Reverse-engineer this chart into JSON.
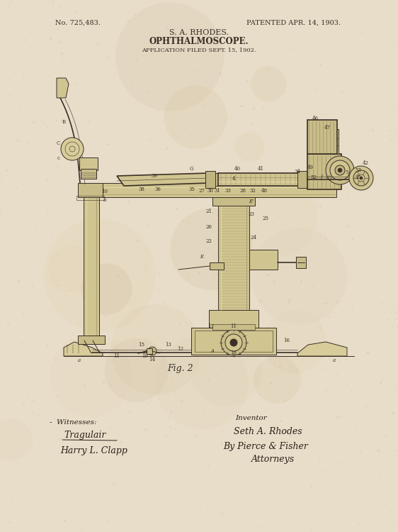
{
  "bg_color": "#e8ddc8",
  "ink_color": "#3a3028",
  "sig_color": "#2a201a",
  "title_line1": "S. A. RHODES.",
  "title_line2": "OPHTHALMOSCOPE.",
  "title_line3": "APPLICATION FILED SEPT. 15, 1902.",
  "patent_no": "No. 725,483.",
  "patent_date": "PATENTED APR. 14, 1903.",
  "fig_label": "Fig. 2",
  "witnesses_label": "Witnesses:",
  "witness1": "Tragulair",
  "witness2": "Harry L. Clapp",
  "inventor_label": "Inventor",
  "inventor_name": "Seth A. Rhodes",
  "attorney_by": "By Pierce & Fisher",
  "attorney_title": "Attorneys",
  "title_fontsize": 8,
  "header_fontsize": 7,
  "small_fontsize": 6,
  "label_fontsize": 5
}
